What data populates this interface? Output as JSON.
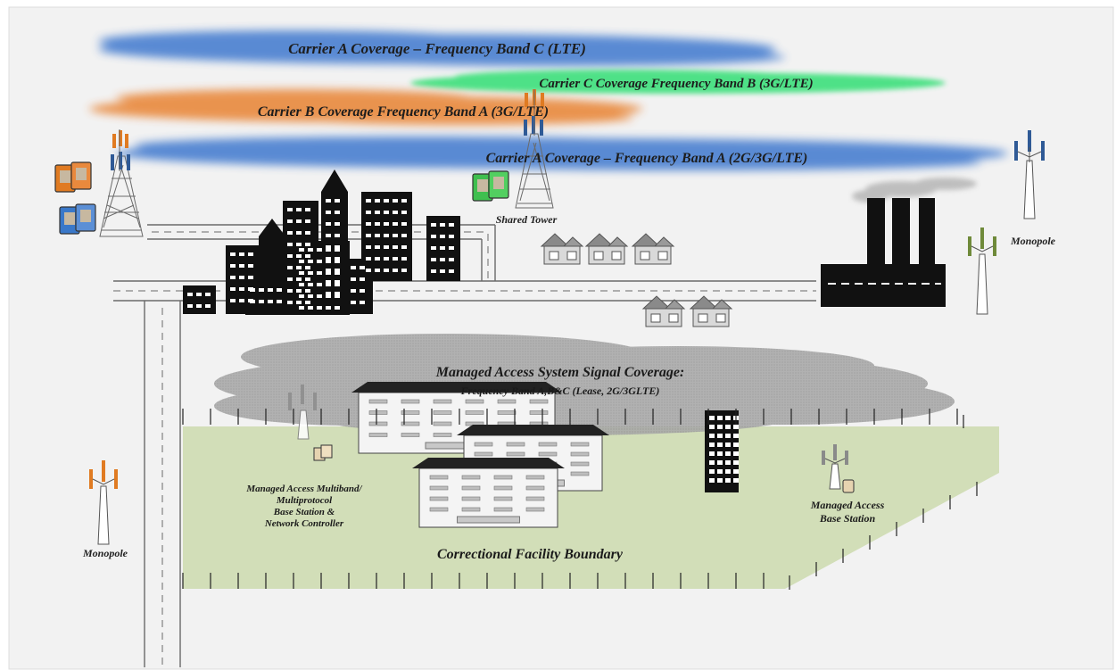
{
  "coverage_bands": [
    {
      "label": "Carrier A Coverage – Frequency Band C (LTE)",
      "color": "#4a7fd0"
    },
    {
      "label": "Carrier C Coverage Frequency Band B (3G/LTE)",
      "color": "#3ee07c"
    },
    {
      "label": "Carrier B Coverage Frequency Band A (3G/LTE)",
      "color": "#e9893d"
    },
    {
      "label": "Carrier A Coverage – Frequency Band A (2G/3G/LTE)",
      "color": "#4a7fd0"
    }
  ],
  "labels": {
    "shared_tower": "Shared Tower",
    "monopole_right": "Monopole",
    "monopole_left": "Monopole",
    "mas_title": "Managed Access System Signal Coverage:",
    "mas_subtitle": "Frequency Band A,B&C (Lease, 2G/3GLTE)",
    "mas_controller": [
      "Managed Access Multiband/",
      "Multiprotocol",
      "Base Station &",
      "Network Controller"
    ],
    "mas_base": [
      "Managed Access",
      "Base Station"
    ],
    "boundary": "Correctional Facility Boundary"
  },
  "colors": {
    "background": "#f2f2f2",
    "facility_ground": "#d2deb8",
    "mas_cloud": "#9c9c9c",
    "tower_orange": "#e07b22",
    "tower_blue": "#2f5a96",
    "tower_green": "#6f8a3a",
    "tower_gray": "#8a8a8a"
  }
}
